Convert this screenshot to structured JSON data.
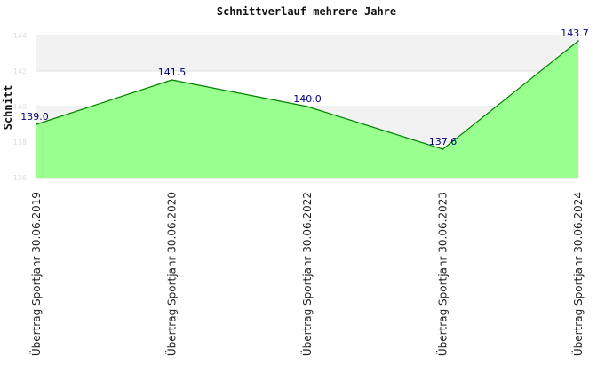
{
  "chart_data": {
    "type": "area",
    "title": "Schnittverlauf mehrere Jahre",
    "xlabel": "",
    "ylabel": "Schnitt",
    "ylim": [
      136,
      144
    ],
    "yticks": [
      "136",
      "138",
      "140",
      "142",
      "144"
    ],
    "categories": [
      "Übertrag Sportjahr 30.06.2019",
      "Übertrag Sportjahr 30.06.2020",
      "Übertrag Sportjahr 30.06.2022",
      "Übertrag Sportjahr 30.06.2023",
      "Übertrag Sportjahr 30.06.2024"
    ],
    "values": [
      139.0,
      141.5,
      140.0,
      137.6,
      143.7
    ],
    "value_labels": [
      "139.0",
      "141.5",
      "140.0",
      "137.6",
      "143.7"
    ],
    "grid": true,
    "colors": {
      "fill": "#99ff8f",
      "line": "#008000",
      "band_light": "#f2f2f2",
      "band_dark": "#ffffff",
      "label": "#000080",
      "grid": "#e2e2e2"
    }
  }
}
